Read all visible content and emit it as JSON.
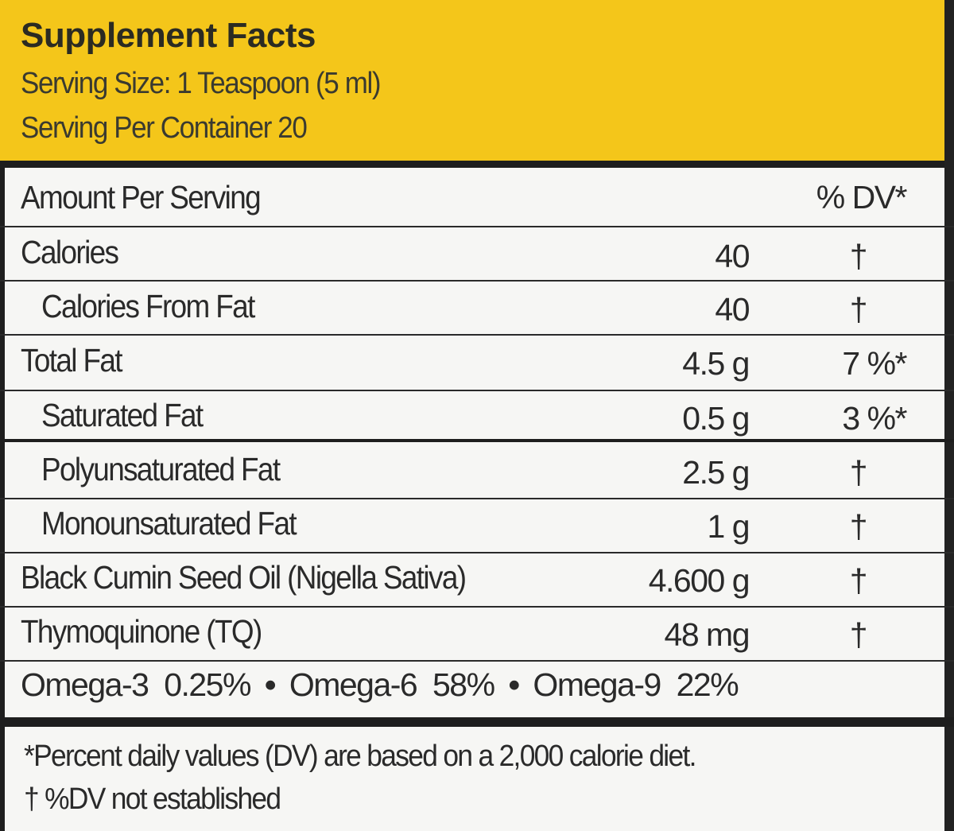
{
  "header": {
    "title": "Supplement Facts",
    "serving_size": "Serving Size: 1 Teaspoon (5 ml)",
    "servings_per_container": "Serving Per Container 20"
  },
  "columns": {
    "amount_header": "Amount Per Serving",
    "dv_header": "% DV*"
  },
  "rows": [
    {
      "label": "Calories",
      "amount": "40",
      "dv": "†"
    },
    {
      "label": "Calories From Fat",
      "amount": "40",
      "dv": "†"
    },
    {
      "label": "Total Fat",
      "amount": "4.5 g",
      "dv": "7 %*"
    },
    {
      "label": "Saturated Fat",
      "amount": "0.5 g",
      "dv": "3 %*"
    },
    {
      "label": "Polyunsaturated Fat",
      "amount": "2.5 g",
      "dv": "†"
    },
    {
      "label": "Monounsaturated Fat",
      "amount": "1 g",
      "dv": "†"
    },
    {
      "label": "Black Cumin Seed Oil (Nigella Sativa)",
      "amount": "4.600 g",
      "dv": "†"
    },
    {
      "label": "Thymoquinone (TQ)",
      "amount": "48 mg",
      "dv": "†"
    }
  ],
  "omegas": [
    "Omega-3  0.25%",
    "Omega-6  58%",
    "Omega-9  22%"
  ],
  "separator": "•",
  "footnotes": {
    "percent_note": "*Percent daily values (DV) are based on a 2,000 calorie diet.",
    "dagger_note": "† %DV not established"
  },
  "colors": {
    "header_background": "#f4c61a",
    "label_background": "#f6f6f4",
    "text": "#2a2a2a"
  }
}
